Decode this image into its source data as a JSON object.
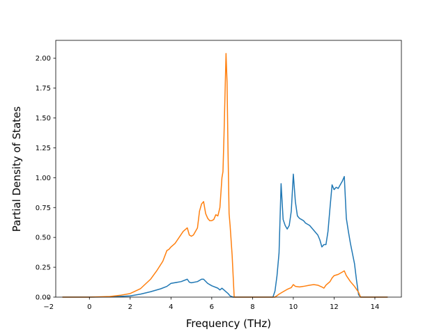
{
  "chart_data": {
    "type": "line",
    "title": "",
    "xlabel": "Frequency (THz)",
    "ylabel": "Partial Density of States",
    "xlim": [
      -1.65,
      15.3
    ],
    "ylim": [
      0,
      2.15
    ],
    "xticks": [
      -2,
      0,
      2,
      4,
      6,
      8,
      10,
      12,
      14
    ],
    "xtick_labels": [
      "−2",
      "0",
      "2",
      "4",
      "6",
      "8",
      "10",
      "12",
      "14"
    ],
    "yticks": [
      0,
      0.25,
      0.5,
      0.75,
      1.0,
      1.25,
      1.5,
      1.75,
      2.0
    ],
    "ytick_labels": [
      "0.00",
      "0.25",
      "0.50",
      "0.75",
      "1.00",
      "1.25",
      "1.50",
      "1.75",
      "2.00"
    ],
    "grid": false,
    "series": [
      {
        "color": "#1f77b4",
        "x": [
          -1.3,
          0.0,
          1.0,
          2.0,
          2.5,
          3.0,
          3.5,
          3.8,
          4.0,
          4.5,
          4.8,
          4.9,
          5.0,
          5.3,
          5.5,
          5.6,
          5.8,
          6.0,
          6.3,
          6.4,
          6.5,
          6.6,
          6.7,
          6.8,
          6.9,
          7.0,
          7.05,
          8.0,
          9.0,
          9.1,
          9.2,
          9.3,
          9.4,
          9.5,
          9.6,
          9.7,
          9.8,
          9.9,
          10.0,
          10.1,
          10.2,
          10.3,
          10.4,
          10.5,
          10.6,
          10.8,
          11.0,
          11.2,
          11.3,
          11.4,
          11.5,
          11.6,
          11.7,
          11.8,
          11.9,
          12.0,
          12.1,
          12.2,
          12.3,
          12.4,
          12.5,
          12.6,
          12.7,
          12.8,
          13.0,
          13.1,
          13.2,
          13.3,
          14.6
        ],
        "y": [
          0.0,
          0.0,
          0.002,
          0.01,
          0.025,
          0.045,
          0.07,
          0.09,
          0.115,
          0.13,
          0.15,
          0.125,
          0.12,
          0.13,
          0.15,
          0.15,
          0.115,
          0.095,
          0.075,
          0.06,
          0.075,
          0.06,
          0.045,
          0.03,
          0.01,
          0.003,
          0.0,
          0.0,
          0.0,
          0.05,
          0.18,
          0.37,
          0.95,
          0.65,
          0.6,
          0.57,
          0.6,
          0.72,
          1.03,
          0.8,
          0.68,
          0.66,
          0.65,
          0.64,
          0.62,
          0.6,
          0.56,
          0.52,
          0.48,
          0.42,
          0.44,
          0.44,
          0.55,
          0.75,
          0.94,
          0.9,
          0.92,
          0.91,
          0.94,
          0.97,
          1.01,
          0.66,
          0.55,
          0.45,
          0.28,
          0.14,
          0.02,
          0.0,
          0.0
        ]
      },
      {
        "color": "#ff7f0e",
        "x": [
          -1.3,
          0.0,
          1.0,
          1.5,
          2.0,
          2.5,
          3.0,
          3.3,
          3.6,
          3.8,
          3.9,
          4.0,
          4.2,
          4.4,
          4.6,
          4.8,
          4.9,
          5.0,
          5.1,
          5.2,
          5.3,
          5.4,
          5.5,
          5.6,
          5.7,
          5.8,
          5.9,
          6.0,
          6.1,
          6.2,
          6.3,
          6.4,
          6.5,
          6.55,
          6.6,
          6.7,
          6.75,
          6.8,
          6.85,
          6.9,
          7.0,
          7.1,
          8.0,
          9.1,
          9.3,
          9.5,
          9.7,
          9.9,
          10.0,
          10.1,
          10.3,
          10.5,
          10.8,
          11.0,
          11.2,
          11.4,
          11.5,
          11.6,
          11.8,
          11.9,
          12.0,
          12.2,
          12.4,
          12.5,
          12.6,
          12.8,
          13.0,
          13.2,
          13.3,
          14.6
        ],
        "y": [
          0.0,
          0.0,
          0.005,
          0.015,
          0.03,
          0.07,
          0.15,
          0.22,
          0.3,
          0.39,
          0.4,
          0.42,
          0.45,
          0.5,
          0.55,
          0.58,
          0.52,
          0.51,
          0.52,
          0.55,
          0.58,
          0.72,
          0.78,
          0.8,
          0.7,
          0.66,
          0.64,
          0.64,
          0.65,
          0.69,
          0.68,
          0.75,
          1.0,
          1.05,
          1.35,
          2.04,
          1.8,
          1.2,
          0.7,
          0.6,
          0.35,
          0.0,
          0.0,
          0.0,
          0.025,
          0.045,
          0.065,
          0.08,
          0.105,
          0.09,
          0.085,
          0.09,
          0.1,
          0.105,
          0.1,
          0.085,
          0.075,
          0.1,
          0.13,
          0.16,
          0.18,
          0.19,
          0.21,
          0.22,
          0.18,
          0.13,
          0.09,
          0.04,
          0.0,
          0.0
        ]
      }
    ]
  }
}
